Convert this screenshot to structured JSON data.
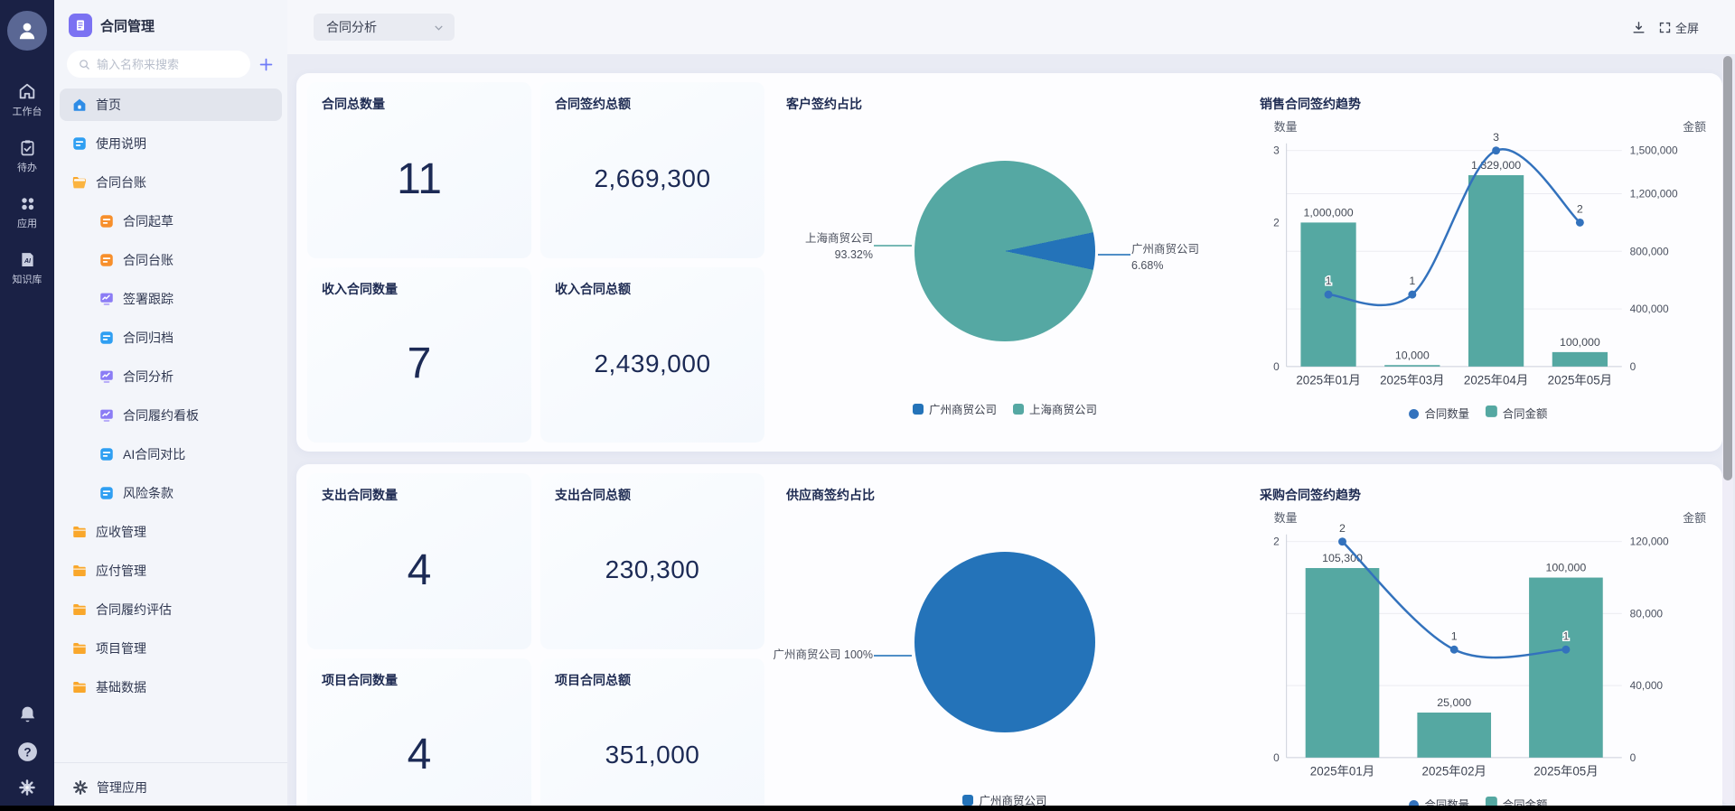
{
  "rail": {
    "items": [
      {
        "label": "工作台",
        "icon": "workbench-home"
      },
      {
        "label": "待办",
        "icon": "todo-clipboard"
      },
      {
        "label": "应用",
        "icon": "apps-grid"
      },
      {
        "label": "知识库",
        "icon": "knowledge-ai"
      }
    ],
    "bottom_icons": [
      "bell",
      "help",
      "settings"
    ]
  },
  "sidebar": {
    "app_title": "合同管理",
    "search_placeholder": "输入名称来搜索",
    "menu": [
      {
        "label": "首页",
        "icon": "home-blue",
        "indent": 0,
        "active": true
      },
      {
        "label": "使用说明",
        "icon": "doc-blue",
        "indent": 0
      },
      {
        "label": "合同台账",
        "icon": "folder-open",
        "indent": 0
      },
      {
        "label": "合同起草",
        "icon": "doc-orange",
        "indent": 1
      },
      {
        "label": "合同台账",
        "icon": "doc-orange",
        "indent": 1
      },
      {
        "label": "签署跟踪",
        "icon": "monitor-purple",
        "indent": 1
      },
      {
        "label": "合同归档",
        "icon": "doc-blue",
        "indent": 1
      },
      {
        "label": "合同分析",
        "icon": "monitor-purple",
        "indent": 1
      },
      {
        "label": "合同履约看板",
        "icon": "monitor-purple",
        "indent": 1
      },
      {
        "label": "AI合同对比",
        "icon": "doc-blue",
        "indent": 1
      },
      {
        "label": "风险条款",
        "icon": "doc-blue",
        "indent": 1
      },
      {
        "label": "应收管理",
        "icon": "folder",
        "indent": 0
      },
      {
        "label": "应付管理",
        "icon": "folder",
        "indent": 0
      },
      {
        "label": "合同履约评估",
        "icon": "folder",
        "indent": 0
      },
      {
        "label": "项目管理",
        "icon": "folder",
        "indent": 0
      },
      {
        "label": "基础数据",
        "icon": "folder",
        "indent": 0
      }
    ],
    "footer": {
      "label": "管理应用"
    }
  },
  "topbar": {
    "view_selector": "合同分析",
    "fullscreen_label": "全屏"
  },
  "panels": [
    {
      "stats": [
        {
          "title": "合同总数量",
          "value": "11",
          "style": "count"
        },
        {
          "title": "合同签约总额",
          "value": "2,669,300",
          "style": "amount"
        },
        {
          "title": "收入合同数量",
          "value": "7",
          "style": "count"
        },
        {
          "title": "收入合同总额",
          "value": "2,439,000",
          "style": "amount"
        }
      ],
      "pie_chart": 0,
      "trend_chart": 1
    },
    {
      "stats": [
        {
          "title": "支出合同数量",
          "value": "4",
          "style": "count"
        },
        {
          "title": "支出合同总额",
          "value": "230,300",
          "style": "amount"
        },
        {
          "title": "项目合同数量",
          "value": "4",
          "style": "count"
        },
        {
          "title": "项目合同总额",
          "value": "351,000",
          "style": "amount"
        }
      ],
      "pie_chart": 2,
      "trend_chart": 3
    }
  ],
  "chart_data": [
    {
      "type": "pie",
      "title": "客户签约占比",
      "slices": [
        {
          "name": "广州商贸公司",
          "value_pct": 6.68,
          "color": "#2473b9",
          "callout": {
            "side": "right",
            "lines": [
              "广州商贸公司",
              "6.68%"
            ]
          }
        },
        {
          "name": "上海商贸公司",
          "value_pct": 93.32,
          "color": "#55a8a3",
          "callout": {
            "side": "left",
            "lines": [
              "上海商贸公司",
              "93.32%"
            ]
          }
        }
      ],
      "legend_position": "bottom"
    },
    {
      "type": "bar-line",
      "title": "销售合同签约趋势",
      "categories": [
        "2025年01月",
        "2025年03月",
        "2025年04月",
        "2025年05月"
      ],
      "left_axis": {
        "name": "数量",
        "max": 3,
        "ticks": [
          3,
          2,
          0
        ]
      },
      "right_axis": {
        "name": "金额",
        "max": 1500000,
        "ticks": [
          1500000,
          1200000,
          800000,
          400000,
          0
        ]
      },
      "series": [
        {
          "name": "合同数量",
          "type": "line",
          "axis": "left",
          "color": "#3372bd",
          "values": [
            1,
            1,
            3,
            2
          ]
        },
        {
          "name": "合同金额",
          "type": "bar",
          "axis": "right",
          "color": "#55a8a2",
          "values": [
            1000000,
            10000,
            1329000,
            100000
          ]
        }
      ],
      "grid": true,
      "legend_position": "bottom"
    },
    {
      "type": "pie",
      "title": "供应商签约占比",
      "slices": [
        {
          "name": "广州商贸公司",
          "value_pct": 100,
          "color": "#2473b9",
          "callout": {
            "side": "left",
            "lines": [
              "广州商贸公司 100%"
            ]
          }
        }
      ],
      "legend_position": "bottom"
    },
    {
      "type": "bar-line",
      "title": "采购合同签约趋势",
      "categories": [
        "2025年01月",
        "2025年02月",
        "2025年05月"
      ],
      "left_axis": {
        "name": "数量",
        "max": 2,
        "ticks": [
          2,
          0
        ]
      },
      "right_axis": {
        "name": "金额",
        "max": 120000,
        "ticks": [
          120000,
          80000,
          40000,
          0
        ]
      },
      "series": [
        {
          "name": "合同数量",
          "type": "line",
          "axis": "left",
          "color": "#3372bd",
          "values": [
            2,
            1,
            1
          ]
        },
        {
          "name": "合同金额",
          "type": "bar",
          "axis": "right",
          "color": "#55a8a2",
          "values": [
            105300,
            25000,
            100000
          ]
        }
      ],
      "grid": true,
      "legend_position": "bottom"
    }
  ]
}
